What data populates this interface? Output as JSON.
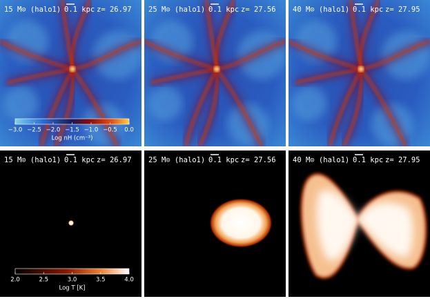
{
  "panels": [
    {
      "mass": "15 M⊙ (halo1)",
      "scale": "0.1 kpc",
      "redshift": "z= 26.97"
    },
    {
      "mass": "25 M⊙ (halo1)",
      "scale": "0.1 kpc",
      "redshift": "z= 27.56"
    },
    {
      "mass": "40 M⊙ (halo1)",
      "scale": "0.1 kpc",
      "redshift": "z= 27.95"
    },
    {
      "mass": "15 M⊙ (halo1)",
      "scale": "0.1 kpc",
      "redshift": "z= 26.97"
    },
    {
      "mass": "25 M⊙ (halo1)",
      "scale": "0.1 kpc",
      "redshift": "z= 27.56"
    },
    {
      "mass": "40 M⊙ (halo1)",
      "scale": "0.1 kpc",
      "redshift": "z= 27.95"
    }
  ],
  "colorbars": [
    {
      "label": "Log nH (cm⁻³)",
      "range": [
        -3,
        0
      ],
      "ticks": [
        {
          "value": -3,
          "label": "−3.0"
        },
        {
          "value": -2.5,
          "label": "−2.5"
        },
        {
          "value": -2,
          "label": "−2.0"
        },
        {
          "value": -1.5,
          "label": "−1.5"
        },
        {
          "value": -1,
          "label": "−1.0"
        },
        {
          "value": -0.5,
          "label": "−0.5"
        },
        {
          "value": 0,
          "label": "0.0"
        }
      ]
    },
    {
      "label": "Log T [K]",
      "range": [
        2,
        4
      ],
      "ticks": [
        {
          "value": 2,
          "label": "2.0"
        },
        {
          "value": 2.5,
          "label": "2.5"
        },
        {
          "value": 3,
          "label": "3.0"
        },
        {
          "value": 3.5,
          "label": "3.5"
        },
        {
          "value": 4,
          "label": "4.0"
        }
      ]
    }
  ]
}
